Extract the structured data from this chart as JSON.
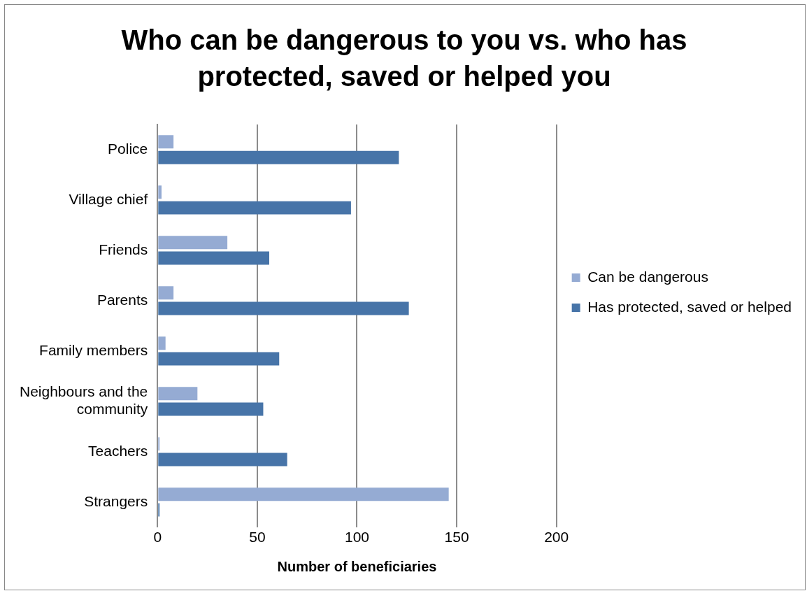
{
  "chart_data": {
    "type": "bar",
    "orientation": "horizontal",
    "title": "Who can be dangerous to you vs. who has protected, saved or helped you",
    "xlabel": "Number of beneficiaries",
    "categories": [
      "Police",
      "Village chief",
      "Friends",
      "Parents",
      "Family members",
      "Neighbours and the community",
      "Teachers",
      "Strangers"
    ],
    "series": [
      {
        "name": "Can be dangerous",
        "color": "#95abd3",
        "values": [
          8,
          2,
          35,
          8,
          4,
          20,
          1,
          146
        ]
      },
      {
        "name": "Has protected, saved or helped",
        "color": "#4774a8",
        "values": [
          121,
          97,
          56,
          126,
          61,
          53,
          65,
          1
        ]
      }
    ],
    "xlim": [
      0,
      200
    ],
    "xticks": [
      0,
      50,
      100,
      150,
      200
    ],
    "grid": "x",
    "legend": "right"
  }
}
